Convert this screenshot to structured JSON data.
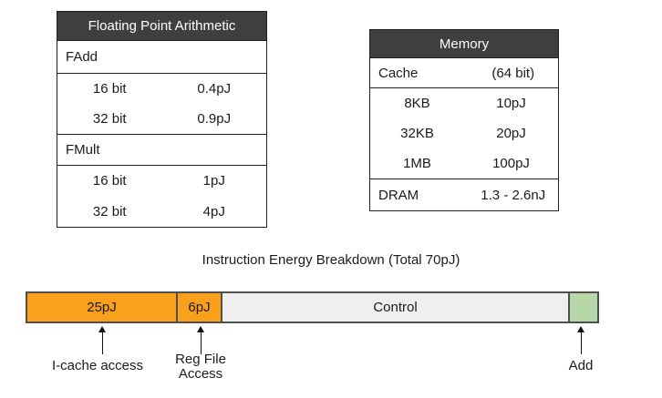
{
  "fp_table": {
    "header": "Floating Point Arithmetic",
    "sections": [
      {
        "name": "FAdd",
        "rows": [
          {
            "label": "16 bit",
            "value": "0.4pJ"
          },
          {
            "label": "32 bit",
            "value": "0.9pJ"
          }
        ]
      },
      {
        "name": "FMult",
        "rows": [
          {
            "label": "16 bit",
            "value": "1pJ"
          },
          {
            "label": "32 bit",
            "value": "4pJ"
          }
        ]
      }
    ]
  },
  "memory_table": {
    "header": "Memory",
    "cache_section": {
      "name": "Cache",
      "note": "(64 bit)",
      "rows": [
        {
          "label": "8KB",
          "value": "10pJ"
        },
        {
          "label": "32KB",
          "value": "20pJ"
        },
        {
          "label": "1MB",
          "value": "100pJ"
        }
      ]
    },
    "dram_row": {
      "name": "DRAM",
      "value": "1.3 - 2.6nJ"
    }
  },
  "breakdown": {
    "title": "Instruction Energy Breakdown (Total 70pJ)",
    "segments": [
      {
        "label": "25pJ",
        "color": "#f9a11d"
      },
      {
        "label": "6pJ",
        "color": "#f9a11d"
      },
      {
        "label": "Control",
        "color": "#efefef"
      },
      {
        "label": "",
        "color": "#b6d7a8"
      }
    ],
    "annotations": {
      "icache": "I-cache access",
      "regfile_line1": "Reg File",
      "regfile_line2": "Access",
      "add": "Add"
    }
  },
  "chart_data": {
    "type": "bar",
    "title": "Instruction Energy Breakdown (Total 70pJ)",
    "orientation": "horizontal-stacked",
    "total": "70pJ",
    "segments": [
      {
        "name": "I-cache access",
        "bar_text": "25pJ",
        "value_pj": 25,
        "color": "#f9a11d"
      },
      {
        "name": "Reg File Access",
        "bar_text": "6pJ",
        "value_pj": 6,
        "color": "#f9a11d"
      },
      {
        "name": "Control",
        "bar_text": "Control",
        "color": "#efefef"
      },
      {
        "name": "Add",
        "bar_text": "",
        "color": "#b6d7a8"
      }
    ]
  },
  "colors": {
    "table_header_bg": "#3f3f3f",
    "table_header_text": "#ffffff",
    "table_border": "#1f1f1f",
    "bar_border": "#4f4f4f",
    "orange": "#f9a11d",
    "control_gray": "#efefef",
    "add_green": "#b6d7a8",
    "text": "#1b1b1b",
    "background": "#ffffff"
  }
}
